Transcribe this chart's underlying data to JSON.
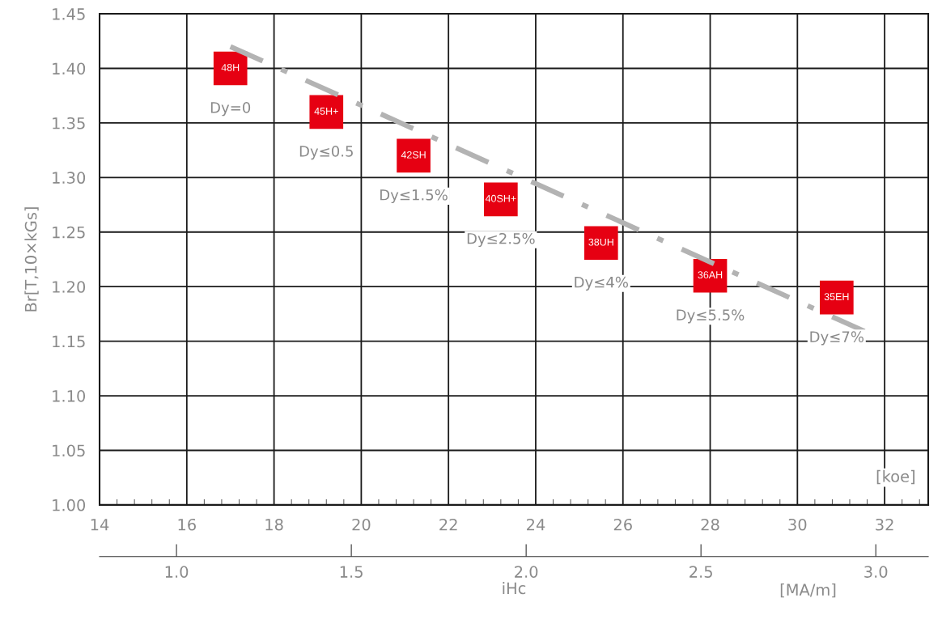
{
  "chart_data": {
    "type": "scatter",
    "xlabel": "iHc",
    "ylabel": "Br[T,10×kGs]",
    "x2label": "[MA/m]",
    "x": [
      17.0,
      19.2,
      21.2,
      23.2,
      25.5,
      28.0,
      30.9
    ],
    "series": [
      {
        "color": "#e60012",
        "values": [
          1.4,
          1.36,
          1.32,
          1.28,
          1.24,
          1.21,
          1.19
        ],
        "marker": "square"
      },
      {
        "type": "line",
        "color": "#b3b3b3",
        "x": [
          17.0,
          31.77
        ],
        "values": [
          1.42,
          1.155
        ],
        "line_style": "dashdot",
        "marker": "none"
      }
    ],
    "annotations": [
      "[koe]",
      {
        "text": "48H",
        "x": 17.0,
        "y": 1.4
      },
      {
        "text": "45H+",
        "x": 19.2,
        "y": 1.36
      },
      {
        "text": "42SH",
        "x": 21.2,
        "y": 1.32
      },
      {
        "text": "40SH+",
        "x": 23.2,
        "y": 1.28
      },
      {
        "text": "38UH",
        "x": 25.5,
        "y": 1.24
      },
      {
        "text": "36AH",
        "x": 28.0,
        "y": 1.21
      },
      {
        "text": "35EH",
        "x": 30.9,
        "y": 1.19
      },
      {
        "text": "Dy=0",
        "x": 17.0,
        "y": 1.4
      },
      {
        "text": "Dy≤0.5",
        "x": 19.2,
        "y": 1.36
      },
      {
        "text": "Dy≤1.5%",
        "x": 21.2,
        "y": 1.32
      },
      {
        "text": "Dy≤2.5%",
        "x": 23.2,
        "y": 1.28
      },
      {
        "text": "Dy≤4%",
        "x": 25.5,
        "y": 1.24
      },
      {
        "text": "Dy≤5.5%",
        "x": 28.0,
        "y": 1.21
      },
      {
        "text": "Dy≤7%",
        "x": 30.9,
        "y": 1.19
      }
    ],
    "xlim": [
      14,
      33
    ],
    "xticks": [
      14,
      16,
      18,
      20,
      22,
      24,
      26,
      28,
      30,
      32
    ],
    "ylim": [
      1.0,
      1.45
    ],
    "yticks": [
      {
        "value": 1.0,
        "label": "1.00"
      },
      1.05,
      {
        "value": 1.1,
        "label": "1.10"
      },
      1.15,
      {
        "value": 1.2,
        "label": "1.20"
      },
      1.25,
      {
        "value": 1.3,
        "label": "1.30"
      },
      1.35,
      {
        "value": 1.4,
        "label": "1.40"
      },
      1.45
    ],
    "x2lim": [
      0.78,
      3.15
    ],
    "x2ticks": [
      {
        "value": 1.0,
        "label": "1.0"
      },
      1.5,
      {
        "value": 2.0,
        "label": "2.0"
      },
      2.5,
      {
        "value": 3.0,
        "label": "3.0"
      }
    ],
    "grid": true,
    "legend": false
  }
}
